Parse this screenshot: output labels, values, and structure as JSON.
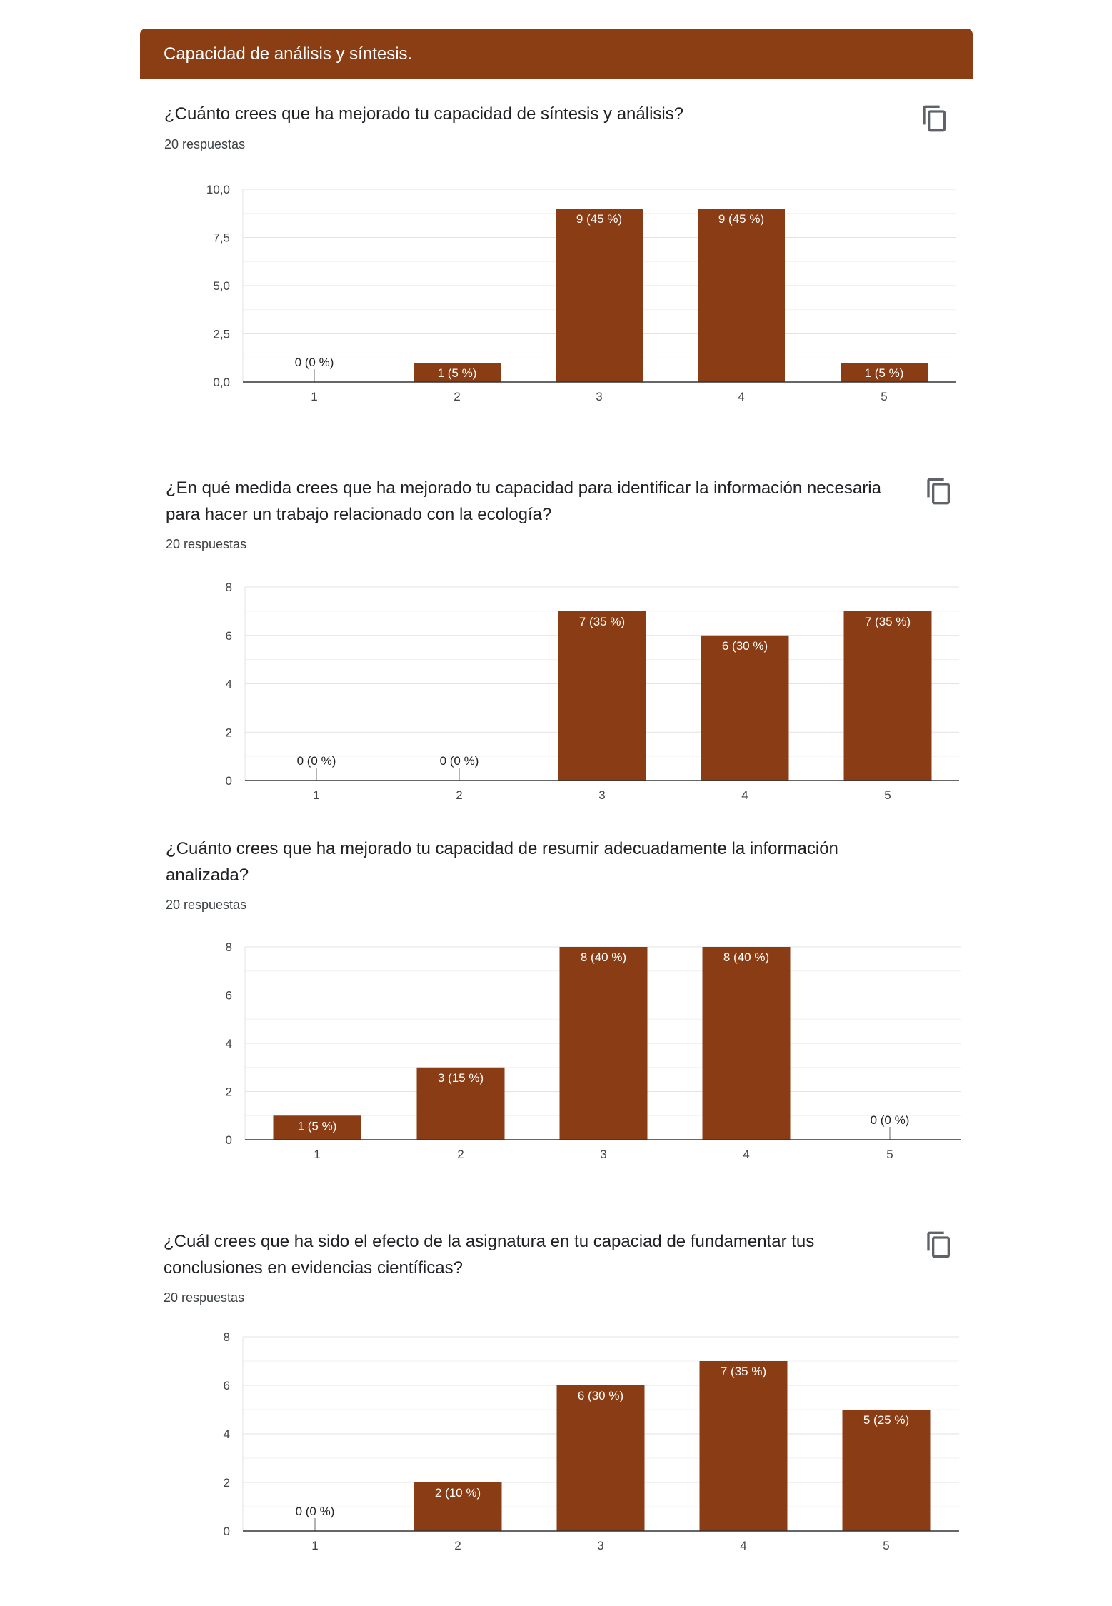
{
  "header": {
    "title": "Capacidad de análisis y síntesis."
  },
  "colors": {
    "accent": "#8b3e14",
    "bar": "#8a3d14"
  },
  "icons": {
    "copy": "copy-icon"
  },
  "questions": [
    {
      "title": "¿Cuánto crees que ha mejorado tu capacidad de síntesis y análisis?",
      "responses": "20 respuestas",
      "has_copy_icon": true,
      "chart_data": {
        "type": "bar",
        "categories": [
          "1",
          "2",
          "3",
          "4",
          "5"
        ],
        "values": [
          0,
          1,
          9,
          9,
          1
        ],
        "data_labels": [
          "0 (0 %)",
          "1 (5 %)",
          "9 (45 %)",
          "9 (45 %)",
          "1 (5 %)"
        ],
        "yticks": [
          "0,0",
          "2,5",
          "5,0",
          "7,5",
          "10,0"
        ],
        "ylim": [
          0,
          10
        ],
        "grid": true,
        "legend": "none"
      }
    },
    {
      "title": "¿En qué medida crees que ha mejorado tu capacidad para identificar la información necesaria para hacer un trabajo relacionado con la ecología?",
      "responses": "20 respuestas",
      "has_copy_icon": true,
      "chart_data": {
        "type": "bar",
        "categories": [
          "1",
          "2",
          "3",
          "4",
          "5"
        ],
        "values": [
          0,
          0,
          7,
          6,
          7
        ],
        "data_labels": [
          "0 (0 %)",
          "0 (0 %)",
          "7 (35 %)",
          "6 (30 %)",
          "7 (35 %)"
        ],
        "yticks": [
          "0",
          "2",
          "4",
          "6",
          "8"
        ],
        "ylim": [
          0,
          8
        ],
        "grid": true,
        "legend": "none"
      }
    },
    {
      "title": "¿Cuánto crees que ha mejorado tu capacidad de resumir adecuadamente la información analizada?",
      "responses": "20 respuestas",
      "has_copy_icon": false,
      "chart_data": {
        "type": "bar",
        "categories": [
          "1",
          "2",
          "3",
          "4",
          "5"
        ],
        "values": [
          1,
          3,
          8,
          8,
          0
        ],
        "data_labels": [
          "1 (5 %)",
          "3 (15 %)",
          "8 (40 %)",
          "8 (40 %)",
          "0 (0 %)"
        ],
        "yticks": [
          "0",
          "2",
          "4",
          "6",
          "8"
        ],
        "ylim": [
          0,
          8
        ],
        "grid": true,
        "legend": "none"
      }
    },
    {
      "title": "¿Cuál crees que ha sido el efecto de la asignatura en tu capaciad de fundamentar tus conclusiones en evidencias científicas?",
      "responses": "20 respuestas",
      "has_copy_icon": true,
      "chart_data": {
        "type": "bar",
        "categories": [
          "1",
          "2",
          "3",
          "4",
          "5"
        ],
        "values": [
          0,
          2,
          6,
          7,
          5
        ],
        "data_labels": [
          "0 (0 %)",
          "2 (10 %)",
          "6 (30 %)",
          "7 (35 %)",
          "5 (25 %)"
        ],
        "yticks": [
          "0",
          "2",
          "4",
          "6",
          "8"
        ],
        "ylim": [
          0,
          8
        ],
        "grid": true,
        "legend": "none"
      }
    }
  ]
}
